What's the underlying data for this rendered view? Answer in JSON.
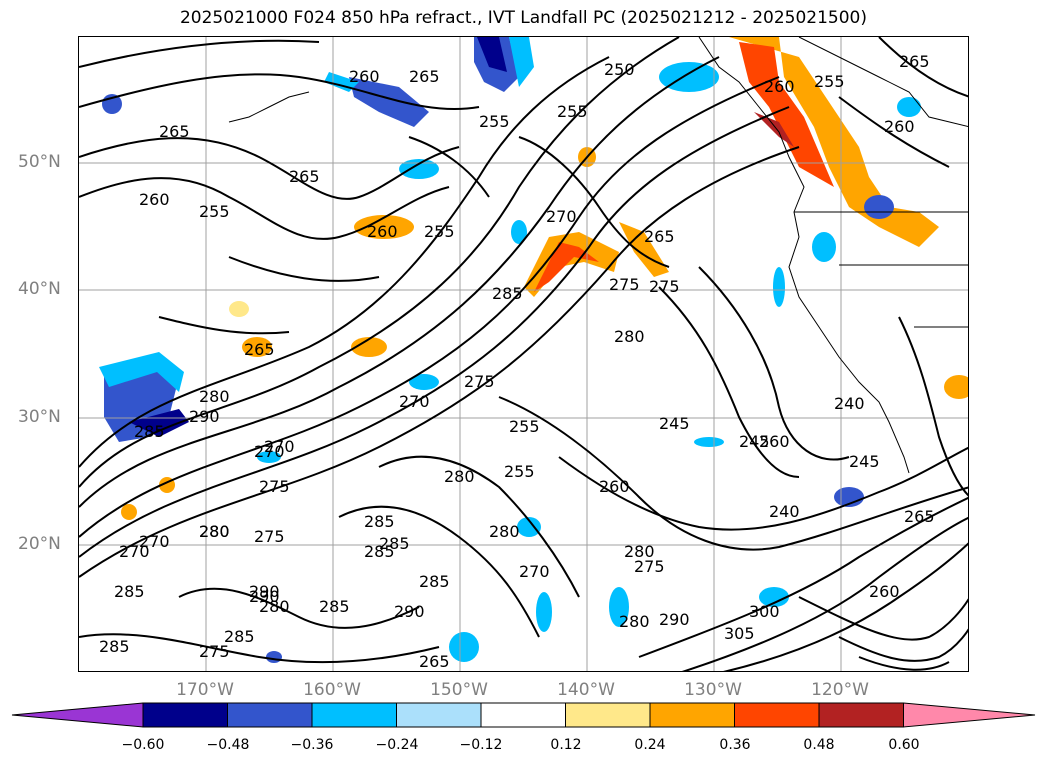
{
  "title": "2025021000 F024 850 hPa refract., IVT Landfall PC (2025021212 - 2025021500)",
  "latitude_labels": [
    "50°N",
    "40°N",
    "30°N",
    "20°N"
  ],
  "longitude_labels": [
    "170°W",
    "160°W",
    "150°W",
    "140°W",
    "130°W",
    "120°W"
  ],
  "colorbar": {
    "tick_labels": [
      "−0.60",
      "−0.48",
      "−0.36",
      "−0.24",
      "−0.12",
      "0.12",
      "0.24",
      "0.36",
      "0.48",
      "0.60"
    ],
    "colors": [
      "#9a35d4",
      "#00008b",
      "#3355cc",
      "#00bfff",
      "#abe0fb",
      "#ffffff",
      "#ffe88a",
      "#ffa500",
      "#ff4500",
      "#b22222",
      "#ff88aa"
    ],
    "extend": "both"
  },
  "contour_labels": [
    "265",
    "260",
    "255",
    "250",
    "255",
    "260",
    "265",
    "255",
    "265",
    "260",
    "255",
    "260",
    "255",
    "265",
    "260",
    "265",
    "270",
    "285",
    "275",
    "280",
    "265",
    "245",
    "240",
    "245",
    "270",
    "275",
    "280",
    "285",
    "290",
    "280",
    "285",
    "270",
    "255",
    "260",
    "245",
    "275",
    "280",
    "285",
    "260",
    "265",
    "240",
    "255",
    "300",
    "305",
    "290",
    "280",
    "270",
    "285",
    "280",
    "275",
    "280",
    "285",
    "290",
    "285",
    "270",
    "275",
    "285",
    "280",
    "285",
    "290",
    "270",
    "275",
    "260",
    "265",
    "285",
    "280",
    "290",
    "275",
    "270"
  ]
}
